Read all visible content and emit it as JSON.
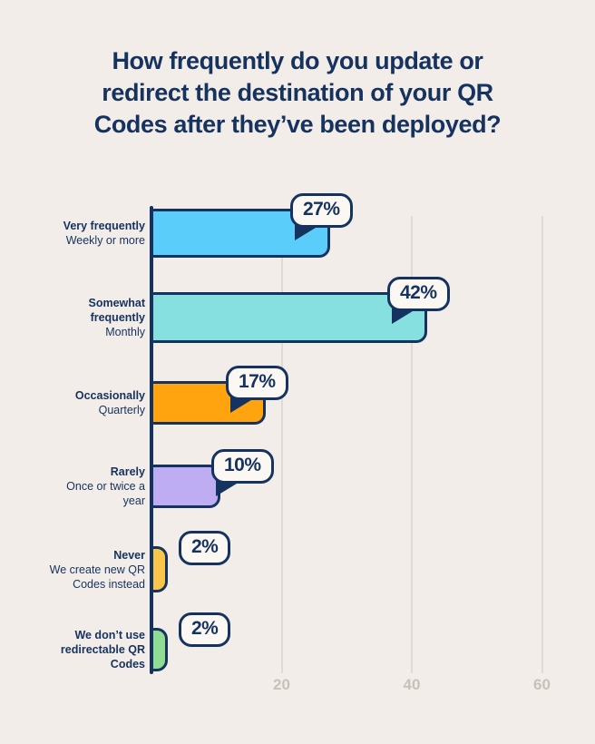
{
  "title_lines": [
    "How frequently do you update or",
    "redirect the destination of your QR",
    "Codes after they’ve been deployed?"
  ],
  "colors": {
    "bg": "#F2EDE8",
    "ink": "#16325F",
    "grid": "#DFDAD4",
    "tick": "#C8C1BA",
    "badge_bg": "#FBF8F4"
  },
  "chart_data": {
    "type": "bar",
    "orientation": "horizontal",
    "title": "How frequently do you update or redirect the destination of your QR Codes after they’ve been deployed?",
    "xlabel": "",
    "ylabel": "",
    "xlim": [
      0,
      68
    ],
    "x_ticks": [
      "20",
      "40",
      "60"
    ],
    "grid": true,
    "legend": false,
    "categories": [
      {
        "label_bold": "Very frequently",
        "label_normal": "Weekly or more",
        "value": 27,
        "value_label": "27%",
        "color": "#5BCDFA"
      },
      {
        "label_bold": "Somewhat frequently",
        "label_normal": "Monthly",
        "value": 42,
        "value_label": "42%",
        "color": "#85E0DF"
      },
      {
        "label_bold": "Occasionally",
        "label_normal": "Quarterly",
        "value": 17,
        "value_label": "17%",
        "color": "#FFA40E"
      },
      {
        "label_bold": "Rarely",
        "label_normal": "Once or twice a year",
        "value": 10,
        "value_label": "10%",
        "color": "#BEADF3"
      },
      {
        "label_bold": "Never",
        "label_normal": "We create new QR Codes instead",
        "value": 2,
        "value_label": "2%",
        "color": "#FBC54B"
      },
      {
        "label_bold": "We don’t use redirectable QR Codes",
        "label_normal": "",
        "value": 2,
        "value_label": "2%",
        "color": "#8FDC93"
      }
    ]
  }
}
